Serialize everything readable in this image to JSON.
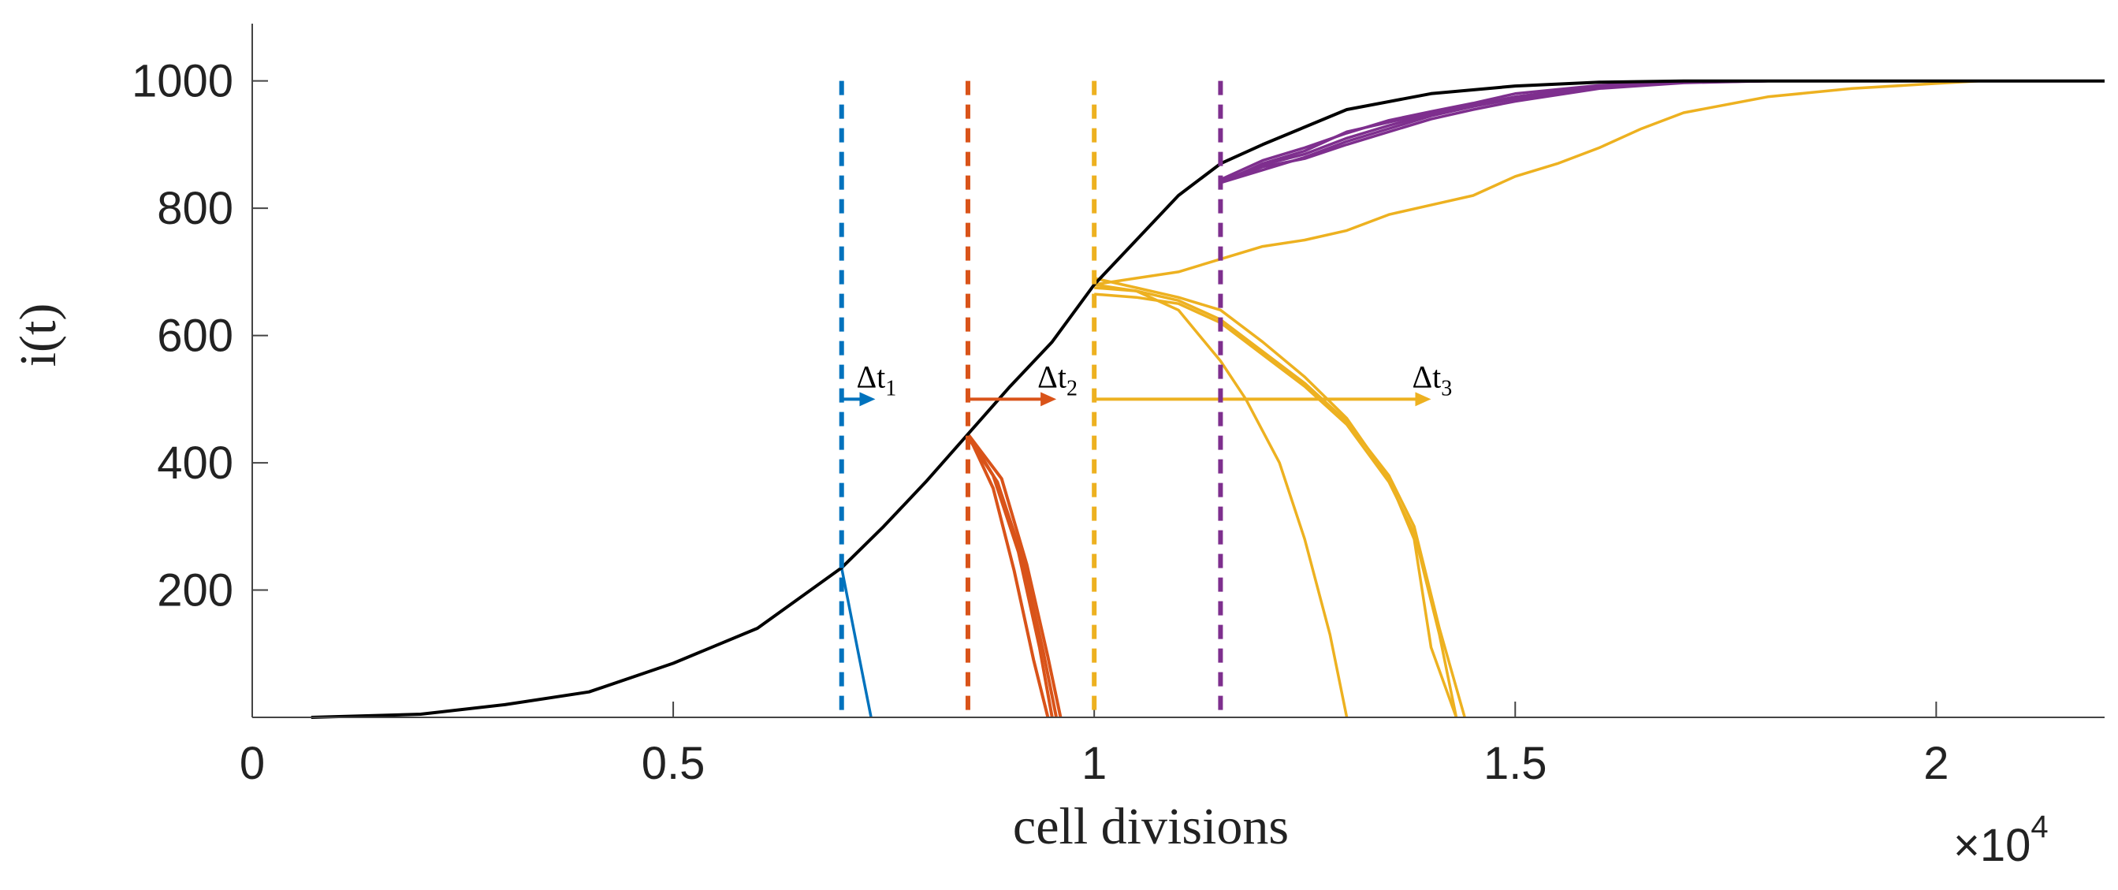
{
  "chart_data": {
    "type": "line",
    "title": "",
    "xlabel": "cell divisions",
    "ylabel": "i(t)",
    "x_multiplier": {
      "times": "×",
      "base": "10",
      "exponent": "4"
    },
    "xlim": [
      0,
      2.2
    ],
    "ylim": [
      0,
      1090
    ],
    "xticks": [
      0,
      0.5,
      1,
      1.5,
      2
    ],
    "xtick_labels": [
      "0",
      "0.5",
      "1",
      "1.5",
      "2"
    ],
    "yticks": [
      200,
      400,
      600,
      800,
      1000
    ],
    "ytick_labels": [
      "200",
      "400",
      "600",
      "800",
      "1000"
    ],
    "grid": false,
    "legend": "none",
    "colors": {
      "main": "#000000",
      "blue": "#0072BD",
      "orange": "#D95319",
      "yellow": "#EDB120",
      "purple": "#7E2F8E",
      "axis": "#444444"
    },
    "main_series": {
      "x": [
        0.07,
        0.2,
        0.3,
        0.4,
        0.5,
        0.6,
        0.7,
        0.75,
        0.8,
        0.85,
        0.9,
        0.95,
        1.0,
        1.05,
        1.1,
        1.15,
        1.2,
        1.3,
        1.4,
        1.5,
        1.6,
        1.7,
        2.2
      ],
      "y": [
        0,
        5,
        20,
        40,
        85,
        140,
        235,
        300,
        370,
        445,
        520,
        590,
        680,
        750,
        820,
        870,
        900,
        955,
        980,
        992,
        998,
        1000,
        1000
      ]
    },
    "interventions": [
      {
        "x": 0.7,
        "color": "blue",
        "arrow_end": 0.74,
        "arrow_label": {
          "base": "Δt",
          "sub": "1"
        },
        "arrow_y": 500
      },
      {
        "x": 0.85,
        "color": "orange",
        "arrow_end": 0.955,
        "arrow_label": {
          "base": "Δt",
          "sub": "2"
        },
        "arrow_y": 500
      },
      {
        "x": 1.0,
        "color": "yellow",
        "arrow_end": 1.4,
        "arrow_label": {
          "base": "Δt",
          "sub": "3"
        },
        "arrow_y": 500
      },
      {
        "x": 1.15,
        "color": "purple"
      }
    ],
    "branches": [
      {
        "color": "blue",
        "x": [
          0.7,
          0.72,
          0.735
        ],
        "y": [
          235,
          100,
          0
        ]
      },
      {
        "color": "orange",
        "x": [
          0.85,
          0.88,
          0.91,
          0.935,
          0.95
        ],
        "y": [
          445,
          380,
          260,
          110,
          0
        ]
      },
      {
        "color": "orange",
        "x": [
          0.85,
          0.885,
          0.915,
          0.94,
          0.955
        ],
        "y": [
          440,
          370,
          250,
          100,
          0
        ]
      },
      {
        "color": "orange",
        "x": [
          0.85,
          0.89,
          0.92,
          0.945,
          0.96
        ],
        "y": [
          445,
          375,
          240,
          95,
          0
        ]
      },
      {
        "color": "orange",
        "x": [
          0.85,
          0.88,
          0.905,
          0.928,
          0.945
        ],
        "y": [
          445,
          360,
          230,
          90,
          0
        ]
      },
      {
        "color": "yellow",
        "x": [
          1.0,
          1.05,
          1.1,
          1.15,
          1.2,
          1.25,
          1.3,
          1.35,
          1.4,
          1.45,
          1.5,
          1.55,
          1.6,
          1.65,
          1.7,
          1.8,
          1.9,
          2.0,
          2.05
        ],
        "y": [
          680,
          690,
          700,
          720,
          740,
          750,
          765,
          790,
          805,
          820,
          850,
          870,
          895,
          925,
          950,
          975,
          988,
          996,
          1000
        ]
      },
      {
        "color": "yellow",
        "x": [
          1.0,
          1.05,
          1.1,
          1.15,
          1.18,
          1.22,
          1.25,
          1.28,
          1.3
        ],
        "y": [
          680,
          670,
          640,
          560,
          500,
          400,
          280,
          130,
          0
        ]
      },
      {
        "color": "yellow",
        "x": [
          1.0,
          1.05,
          1.1,
          1.15,
          1.2,
          1.25,
          1.3,
          1.35,
          1.38,
          1.41,
          1.43
        ],
        "y": [
          665,
          660,
          650,
          620,
          570,
          520,
          460,
          370,
          290,
          130,
          0
        ]
      },
      {
        "color": "yellow",
        "x": [
          1.0,
          1.05,
          1.1,
          1.15,
          1.2,
          1.25,
          1.3,
          1.35,
          1.38,
          1.41,
          1.44
        ],
        "y": [
          675,
          670,
          655,
          625,
          575,
          525,
          465,
          380,
          300,
          140,
          0
        ]
      },
      {
        "color": "yellow",
        "x": [
          1.0,
          1.05,
          1.1,
          1.15,
          1.2,
          1.25,
          1.3,
          1.35,
          1.38,
          1.4,
          1.43
        ],
        "y": [
          690,
          675,
          660,
          640,
          590,
          535,
          470,
          375,
          280,
          110,
          0
        ]
      },
      {
        "color": "purple",
        "x": [
          1.15,
          1.2,
          1.25,
          1.3,
          1.35,
          1.4,
          1.45,
          1.5,
          1.6,
          1.7,
          1.8
        ],
        "y": [
          840,
          870,
          890,
          920,
          935,
          950,
          962,
          975,
          990,
          998,
          1000
        ]
      },
      {
        "color": "purple",
        "x": [
          1.15,
          1.2,
          1.25,
          1.3,
          1.35,
          1.4,
          1.45,
          1.5,
          1.6,
          1.7,
          1.8
        ],
        "y": [
          840,
          860,
          880,
          905,
          925,
          945,
          960,
          975,
          992,
          999,
          1000
        ]
      },
      {
        "color": "purple",
        "x": [
          1.15,
          1.2,
          1.25,
          1.3,
          1.35,
          1.4,
          1.45,
          1.5,
          1.6,
          1.7,
          1.8
        ],
        "y": [
          845,
          875,
          895,
          918,
          938,
          952,
          965,
          980,
          993,
          999,
          1000
        ]
      },
      {
        "color": "purple",
        "x": [
          1.15,
          1.2,
          1.25,
          1.3,
          1.35,
          1.4,
          1.45,
          1.5,
          1.6,
          1.7,
          1.8
        ],
        "y": [
          840,
          865,
          878,
          900,
          920,
          940,
          955,
          968,
          988,
          997,
          1000
        ]
      },
      {
        "color": "purple",
        "x": [
          1.15,
          1.2,
          1.25,
          1.3,
          1.35,
          1.4,
          1.45,
          1.5,
          1.6,
          1.7,
          1.8
        ],
        "y": [
          842,
          868,
          885,
          910,
          930,
          948,
          960,
          972,
          990,
          998,
          1000
        ]
      }
    ]
  }
}
